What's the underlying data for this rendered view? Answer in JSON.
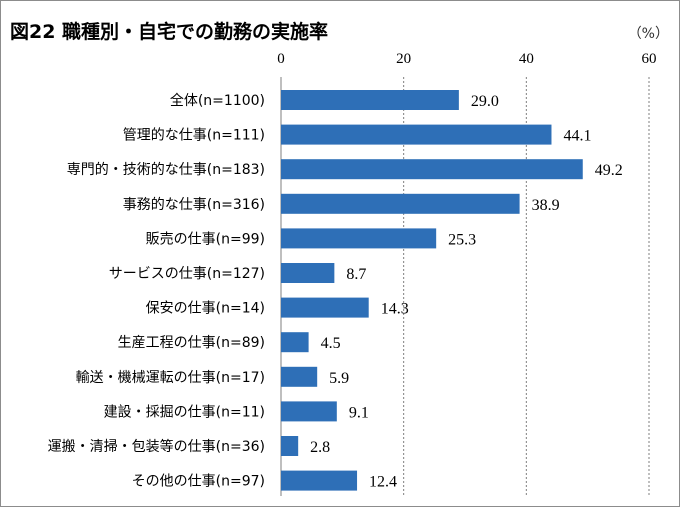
{
  "chart_data": {
    "type": "bar",
    "orientation": "horizontal",
    "title": "図22 職種別・自宅での勤務の実施率",
    "unit_label": "（%）",
    "xlim": [
      0,
      60
    ],
    "ticks": [
      "0",
      "20",
      "40",
      "60"
    ],
    "grid": true,
    "bar_color": "#2e6fb7",
    "categories": [
      "全体(n=1100)",
      "管理的な仕事(n=111)",
      "専門的・技術的な仕事(n=183)",
      "事務的な仕事(n=316)",
      "販売の仕事(n=99)",
      "サービスの仕事(n=127)",
      "保安の仕事(n=14)",
      "生産工程の仕事(n=89)",
      "輸送・機械運転の仕事(n=17)",
      "建設・採掘の仕事(n=11)",
      "運搬・清掃・包装等の仕事(n=36)",
      "その他の仕事(n=97)"
    ],
    "values": [
      29.0,
      44.1,
      49.2,
      38.9,
      25.3,
      8.7,
      14.3,
      4.5,
      5.9,
      9.1,
      2.8,
      12.4
    ],
    "value_labels": [
      "29.0",
      "44.1",
      "49.2",
      "38.9",
      "25.3",
      "8.7",
      "14.3",
      "4.5",
      "5.9",
      "9.1",
      "2.8",
      "12.4"
    ]
  }
}
